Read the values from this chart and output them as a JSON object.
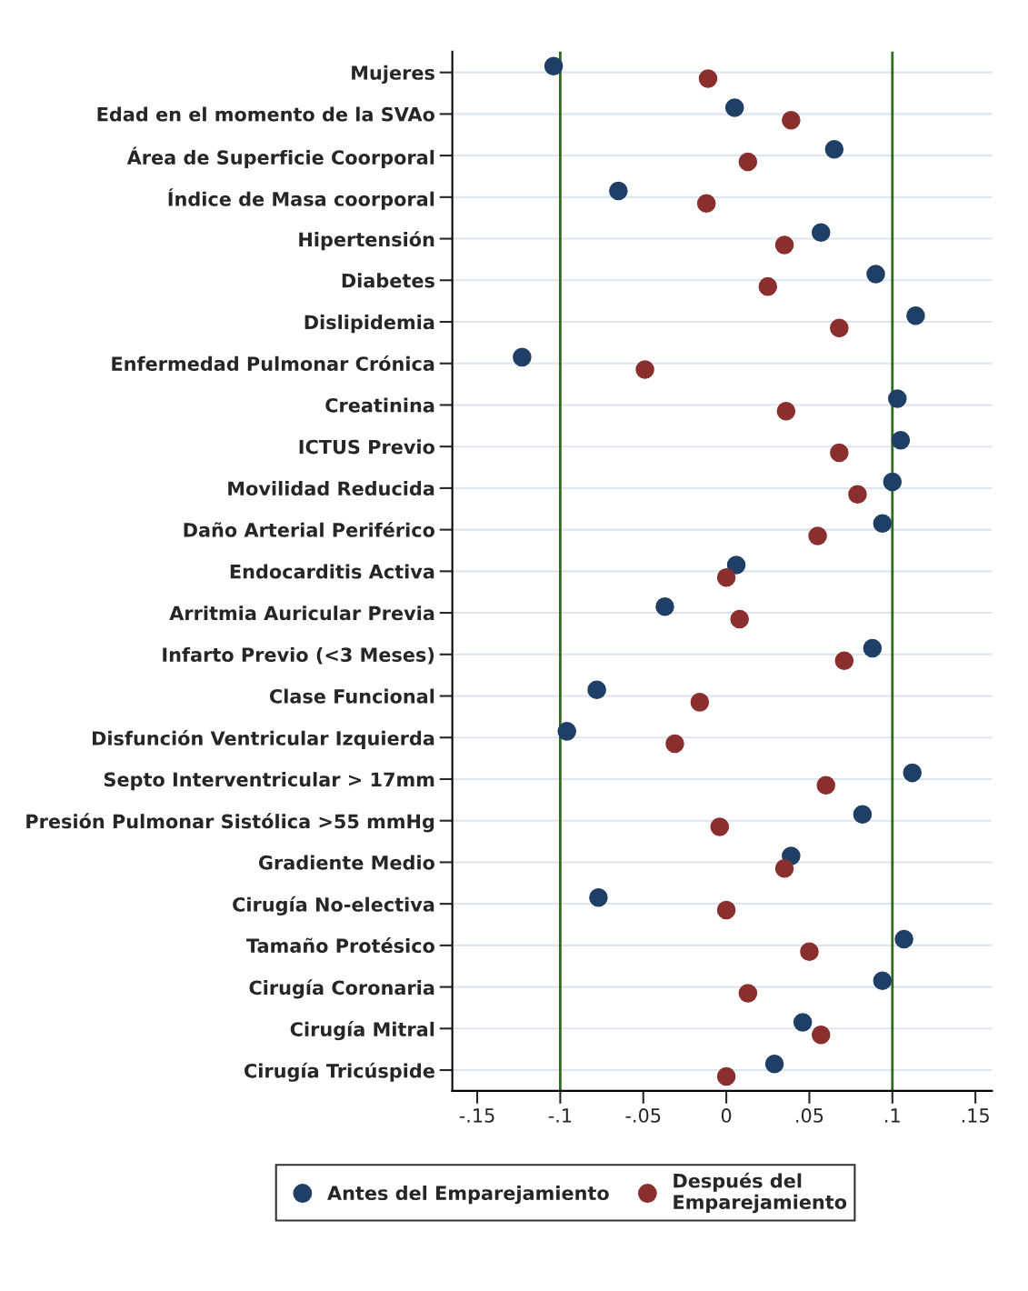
{
  "chart_data": {
    "type": "scatter",
    "orientation": "horizontal",
    "categories": [
      "Mujeres",
      "Edad en el momento de la SVAo",
      "Área de Superficie Coorporal",
      "Índice de Masa coorporal",
      "Hipertensión",
      "Diabetes",
      "Dislipidemia",
      "Enfermedad Pulmonar Crónica",
      "Creatinina",
      "ICTUS Previo",
      "Movilidad Reducida",
      "Daño Arterial Periférico",
      "Endocarditis Activa",
      "Arritmia Auricular Previa",
      "Infarto Previo (<3 Meses)",
      "Clase Funcional",
      "Disfunción Ventricular Izquierda",
      "Septo Interventricular > 17mm",
      "Presión Pulmonar Sistólica >55 mmHg",
      "Gradiente Medio",
      "Cirugía No-electiva",
      "Tamaño Protésico",
      "Cirugía Coronaria",
      "Cirugía Mitral",
      "Cirugía Tricúspide"
    ],
    "series": [
      {
        "name": "Antes del Emparejamiento",
        "color": "#1f3f66",
        "values": [
          -0.104,
          0.005,
          0.065,
          -0.065,
          0.057,
          0.09,
          0.114,
          -0.123,
          0.103,
          0.105,
          0.1,
          0.094,
          0.006,
          -0.037,
          0.088,
          -0.078,
          -0.096,
          0.112,
          0.082,
          0.039,
          -0.077,
          0.107,
          0.094,
          0.046,
          0.029
        ]
      },
      {
        "name": "Después del\nEmparejamiento",
        "color": "#8b2e2e",
        "values": [
          -0.011,
          0.039,
          0.013,
          -0.012,
          0.035,
          0.025,
          0.068,
          -0.049,
          0.036,
          0.068,
          0.079,
          0.055,
          0.0,
          0.008,
          0.071,
          -0.016,
          -0.031,
          0.06,
          -0.004,
          0.035,
          0.0,
          0.05,
          0.013,
          0.057,
          0.0
        ]
      }
    ],
    "xlim": [
      -0.165,
      0.16
    ],
    "xticks": [
      {
        "value": -0.15,
        "label": "-.15"
      },
      {
        "value": -0.1,
        "label": "-.1"
      },
      {
        "value": -0.05,
        "label": "-.05"
      },
      0,
      {
        "value": 0.05,
        "label": ".05"
      },
      {
        "value": 0.1,
        "label": ".1"
      },
      {
        "value": 0.15,
        "label": ".15"
      }
    ],
    "ref_lines": [
      {
        "axis": "x",
        "value": -0.1,
        "color": "#2e6b1f"
      },
      {
        "axis": "x",
        "value": 0.1,
        "color": "#2e6b1f"
      }
    ],
    "grid": "y",
    "legend": "bottom",
    "marker": "circle"
  }
}
